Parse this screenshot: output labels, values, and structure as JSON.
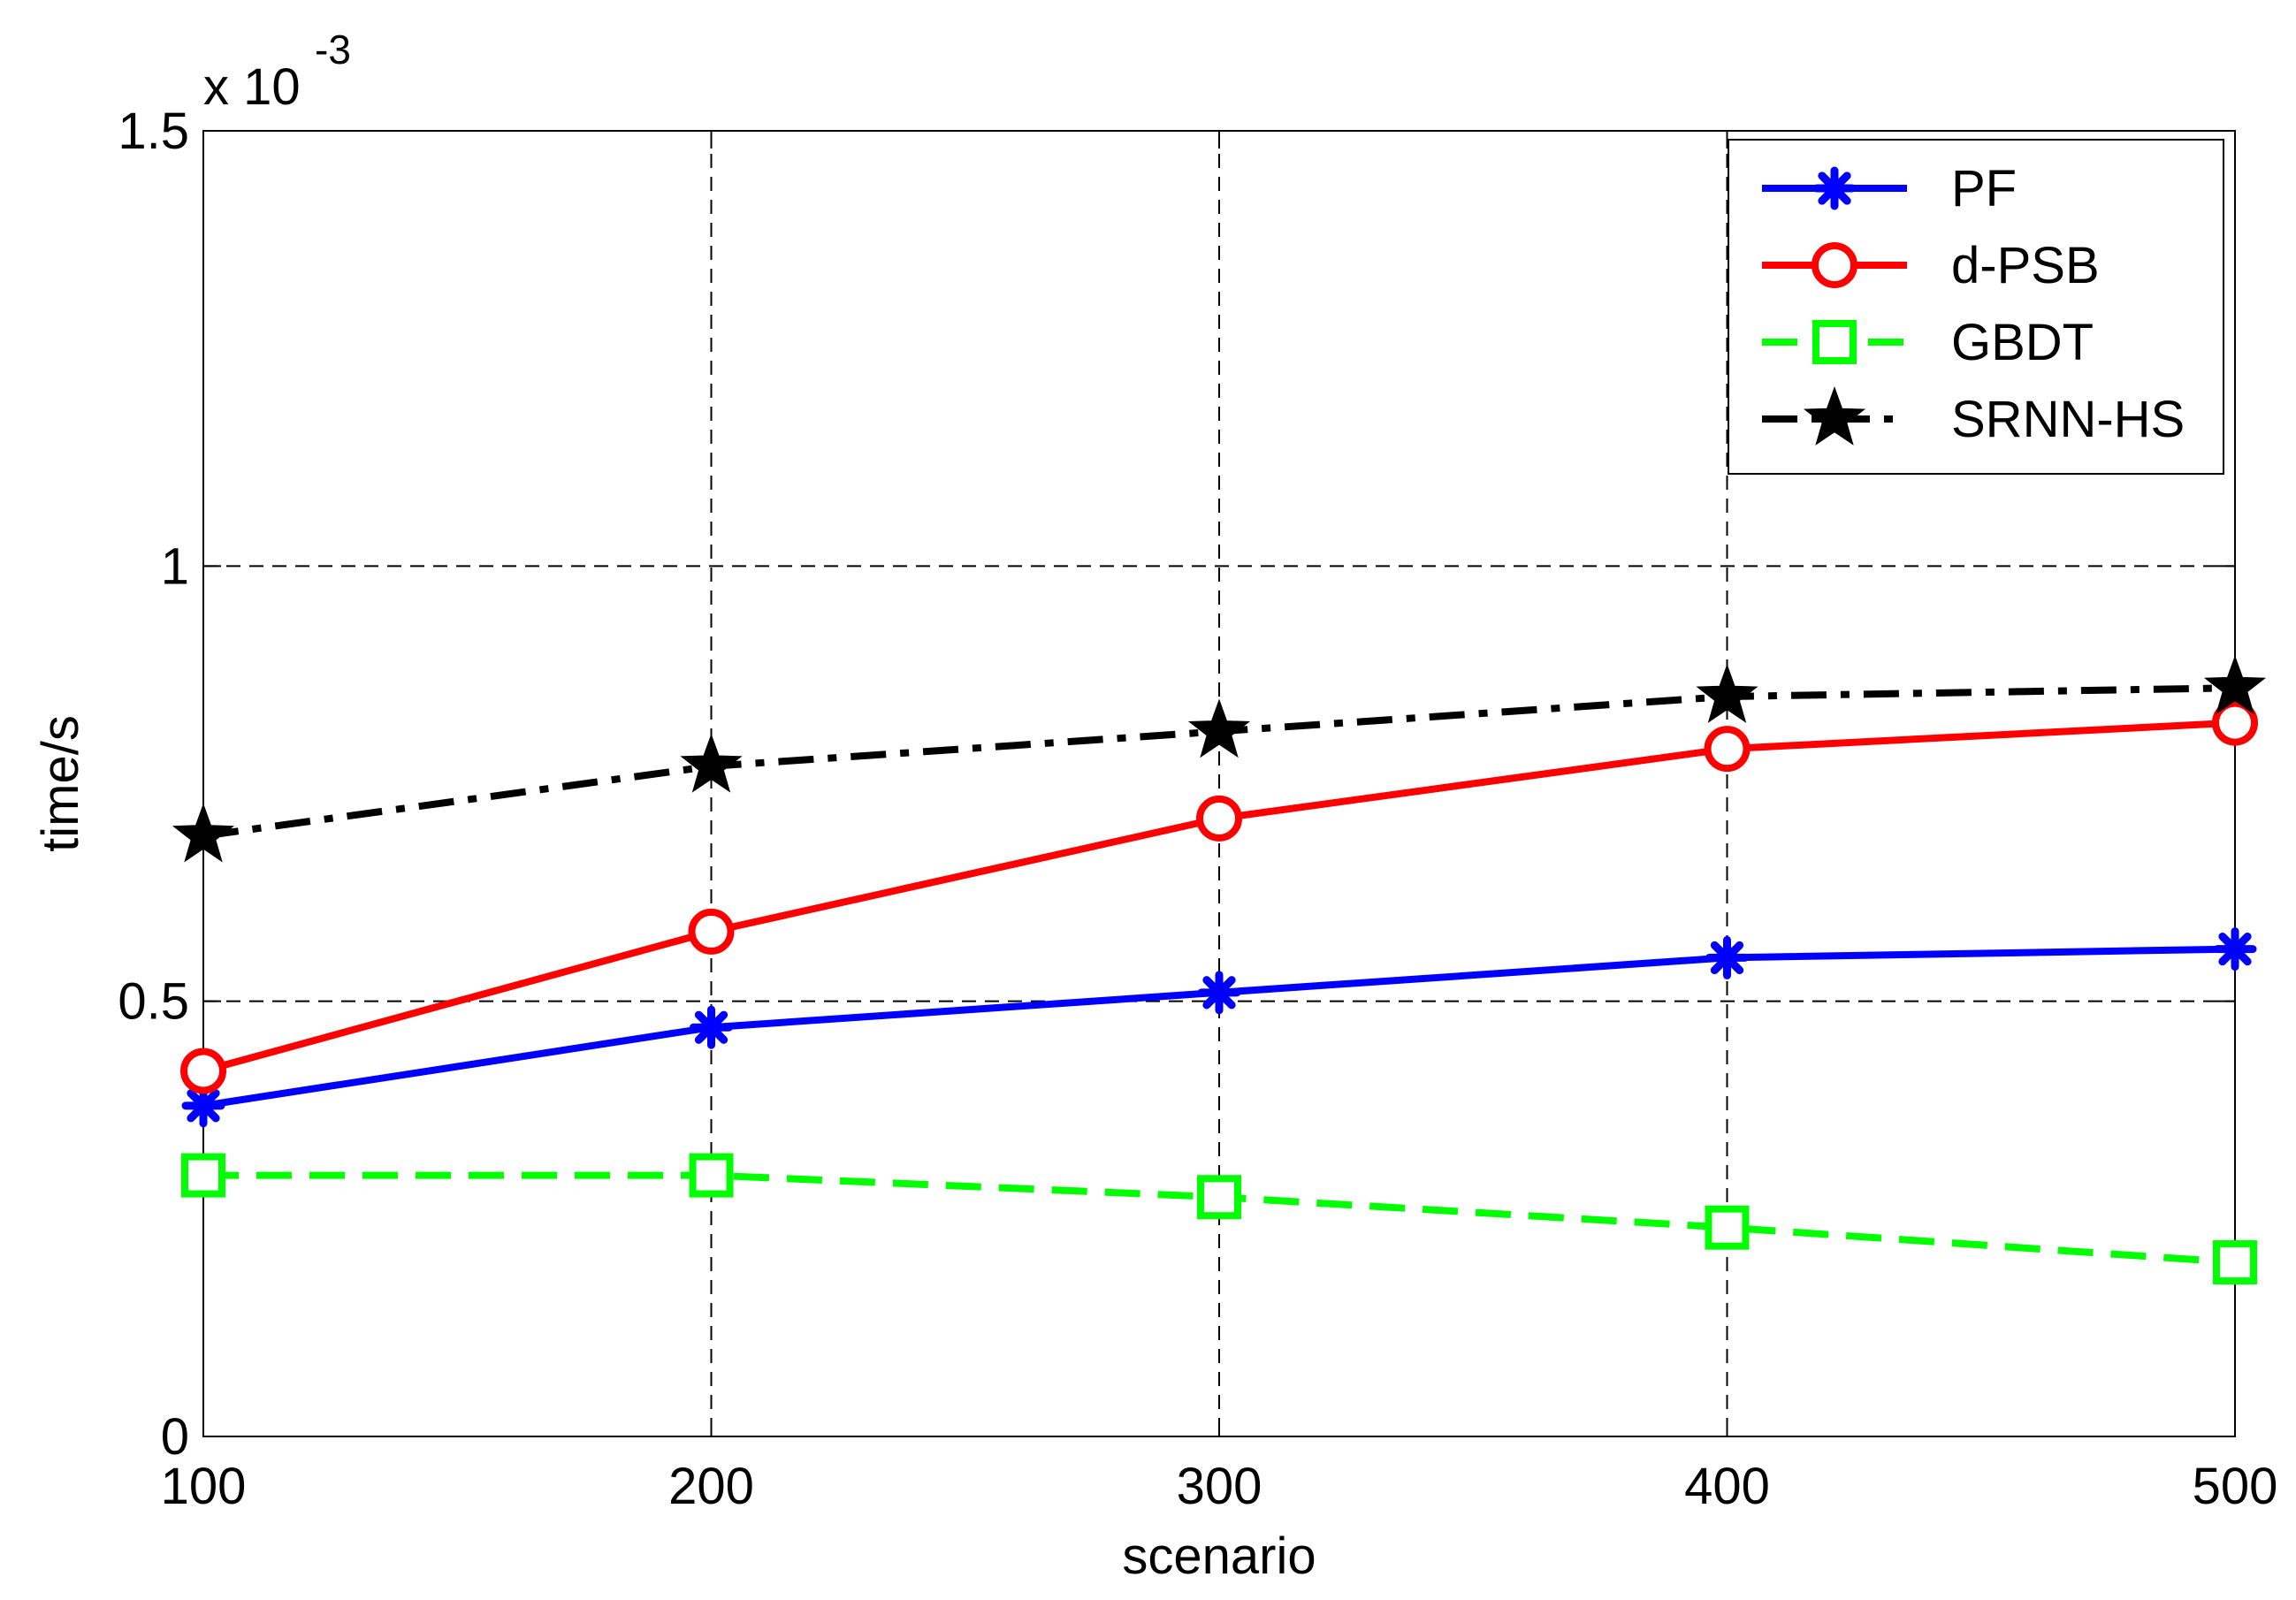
{
  "chart_data": {
    "type": "line",
    "xlabel": "scenario",
    "ylabel": "time/s",
    "y_multiplier_base": "x 10",
    "y_multiplier_exp": "-3",
    "x": [
      100,
      200,
      300,
      400,
      500
    ],
    "x_ticks": [
      "100",
      "200",
      "300",
      "400",
      "500"
    ],
    "xlim": [
      100,
      500
    ],
    "y_ticks": [
      "0",
      "0.5",
      "1",
      "1.5"
    ],
    "ylim": [
      0,
      1.5
    ],
    "grid": true,
    "legend_position": "top-right",
    "series": [
      {
        "name": "PF",
        "color": "#0000ff",
        "line_style": "solid",
        "marker": "asterisk",
        "values": [
          0.38,
          0.47,
          0.51,
          0.55,
          0.56
        ]
      },
      {
        "name": "d-PSB",
        "color": "#ff0000",
        "line_style": "solid",
        "marker": "circle",
        "values": [
          0.42,
          0.58,
          0.71,
          0.79,
          0.82
        ]
      },
      {
        "name": "GBDT",
        "color": "#00ff00",
        "line_style": "dashed",
        "marker": "square",
        "values": [
          0.3,
          0.3,
          0.275,
          0.24,
          0.2
        ]
      },
      {
        "name": "SRNN-HS",
        "color": "#000000",
        "line_style": "dashdot",
        "marker": "star",
        "values": [
          0.69,
          0.77,
          0.81,
          0.85,
          0.86
        ]
      }
    ]
  }
}
